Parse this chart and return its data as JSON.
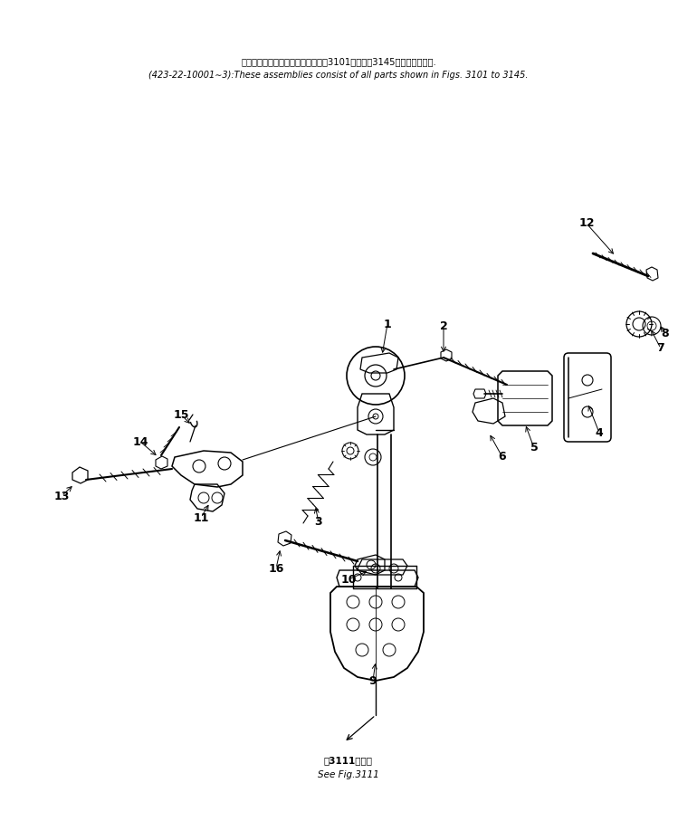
{
  "bg_color": "#ffffff",
  "title_line1": "これらのアセンブリの構成部品は第3101図から第3145図まで含みます.",
  "title_line2": "(423-22-10001∼3):These assemblies consist of all parts shown in Figs. 3101 to 3145.",
  "bottom_label_line1": "第3111図参照",
  "bottom_label_line2": "See Fig.3111"
}
